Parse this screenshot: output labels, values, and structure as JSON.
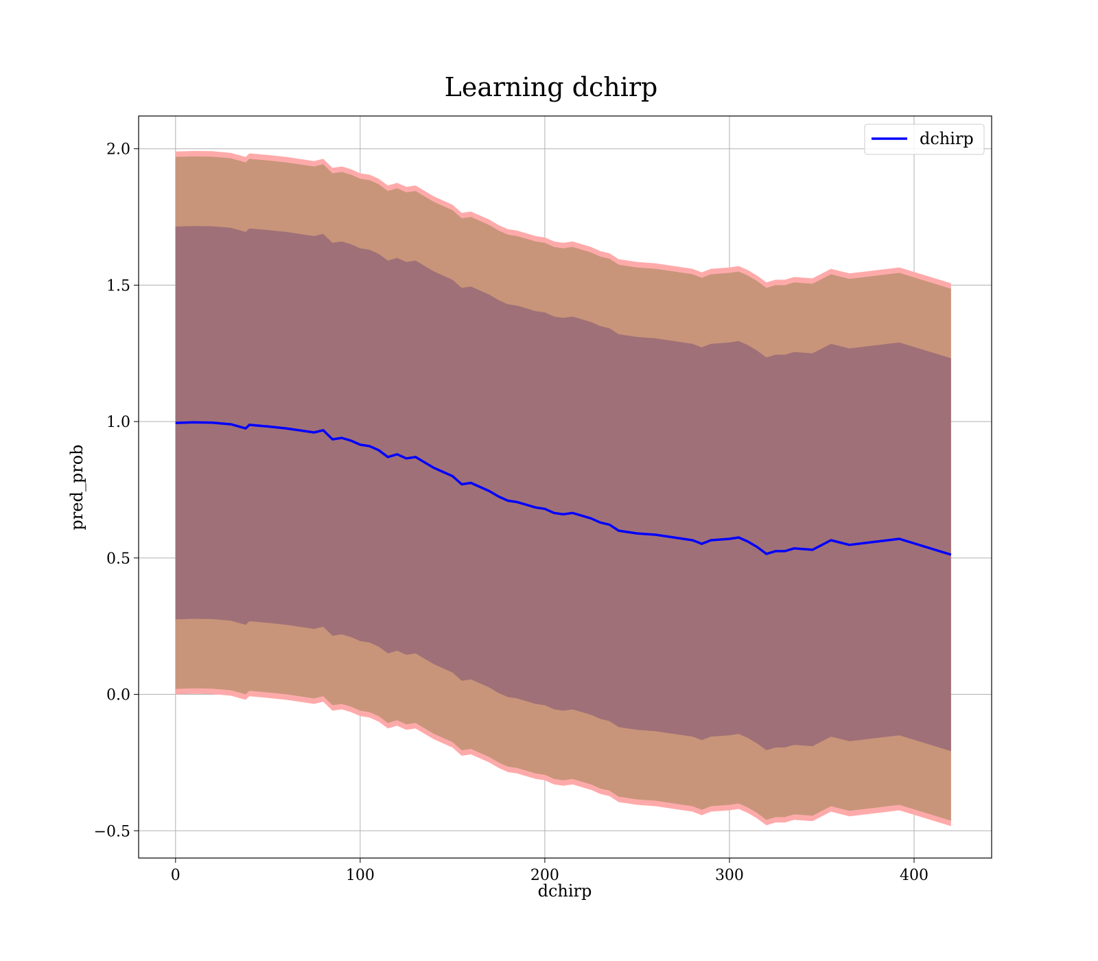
{
  "chart_data": {
    "type": "area",
    "title": "Learning dchirp",
    "xlabel": "dchirp",
    "ylabel": "pred_prob",
    "xlim": [
      -20,
      442
    ],
    "ylim": [
      -0.6,
      2.12
    ],
    "xticks": [
      0,
      100,
      200,
      300,
      400
    ],
    "yticks": [
      -0.5,
      0.0,
      0.5,
      1.0,
      1.5,
      2.0
    ],
    "xtick_labels": [
      "0",
      "100",
      "200",
      "300",
      "400"
    ],
    "ytick_labels": [
      "−0.5",
      "0.0",
      "0.5",
      "1.0",
      "1.5",
      "2.0"
    ],
    "grid": true,
    "legend": {
      "position": "top-right",
      "entries": [
        "dchirp"
      ]
    },
    "colors": {
      "line": "#0000ff",
      "outer_band": "#ffaaaa",
      "middle_band": "#c8957a",
      "inner_band": "#a07078"
    },
    "series": [
      {
        "name": "dchirp",
        "x": [
          0,
          10,
          20,
          30,
          38,
          40,
          50,
          60,
          70,
          75,
          80,
          85,
          90,
          95,
          100,
          105,
          110,
          115,
          120,
          125,
          130,
          135,
          140,
          145,
          150,
          155,
          160,
          165,
          170,
          175,
          180,
          185,
          190,
          195,
          200,
          205,
          210,
          215,
          220,
          225,
          230,
          235,
          240,
          250,
          260,
          270,
          280,
          285,
          290,
          300,
          305,
          310,
          315,
          320,
          325,
          330,
          335,
          345,
          355,
          365,
          392,
          420
        ],
        "mean": [
          0.995,
          0.997,
          0.996,
          0.99,
          0.975,
          0.988,
          0.982,
          0.975,
          0.965,
          0.96,
          0.968,
          0.935,
          0.94,
          0.93,
          0.915,
          0.91,
          0.895,
          0.87,
          0.88,
          0.865,
          0.87,
          0.85,
          0.83,
          0.815,
          0.8,
          0.77,
          0.775,
          0.76,
          0.745,
          0.725,
          0.71,
          0.705,
          0.695,
          0.685,
          0.68,
          0.665,
          0.66,
          0.665,
          0.655,
          0.645,
          0.63,
          0.622,
          0.6,
          0.59,
          0.585,
          0.575,
          0.565,
          0.552,
          0.565,
          0.57,
          0.575,
          0.56,
          0.54,
          0.515,
          0.525,
          0.525,
          0.535,
          0.53,
          0.565,
          0.548,
          0.57,
          0.512
        ],
        "band_inner": [
          0.72,
          0.72,
          0.72,
          0.72,
          0.72,
          0.72,
          0.72,
          0.72,
          0.72,
          0.72,
          0.72,
          0.72,
          0.72,
          0.72,
          0.72,
          0.72,
          0.72,
          0.72,
          0.72,
          0.72,
          0.72,
          0.72,
          0.72,
          0.72,
          0.72,
          0.72,
          0.72,
          0.72,
          0.72,
          0.72,
          0.72,
          0.72,
          0.72,
          0.72,
          0.72,
          0.72,
          0.72,
          0.72,
          0.72,
          0.72,
          0.72,
          0.72,
          0.72,
          0.72,
          0.72,
          0.72,
          0.72,
          0.72,
          0.72,
          0.72,
          0.72,
          0.72,
          0.72,
          0.72,
          0.72,
          0.72,
          0.72,
          0.72,
          0.72,
          0.72,
          0.72,
          0.72
        ],
        "band_middle": [
          0.975,
          0.975,
          0.975,
          0.975,
          0.975,
          0.975,
          0.975,
          0.975,
          0.975,
          0.975,
          0.975,
          0.975,
          0.975,
          0.975,
          0.975,
          0.975,
          0.975,
          0.975,
          0.975,
          0.975,
          0.975,
          0.975,
          0.975,
          0.975,
          0.975,
          0.975,
          0.975,
          0.975,
          0.975,
          0.975,
          0.975,
          0.975,
          0.975,
          0.975,
          0.975,
          0.975,
          0.975,
          0.975,
          0.975,
          0.975,
          0.975,
          0.975,
          0.975,
          0.975,
          0.975,
          0.975,
          0.975,
          0.975,
          0.975,
          0.975,
          0.975,
          0.975,
          0.975,
          0.975,
          0.975,
          0.975,
          0.975,
          0.975,
          0.975,
          0.975,
          0.975,
          0.975
        ],
        "band_outer": [
          0.995,
          0.995,
          0.995,
          0.995,
          0.995,
          0.995,
          0.995,
          0.995,
          0.995,
          0.995,
          0.995,
          0.995,
          0.995,
          0.995,
          0.995,
          0.995,
          0.995,
          0.995,
          0.995,
          0.995,
          0.995,
          0.995,
          0.995,
          0.995,
          0.995,
          0.995,
          0.995,
          0.995,
          0.995,
          0.995,
          0.995,
          0.995,
          0.995,
          0.995,
          0.995,
          0.995,
          0.995,
          0.995,
          0.995,
          0.995,
          0.995,
          0.995,
          0.995,
          0.995,
          0.995,
          0.995,
          0.995,
          0.995,
          0.995,
          0.995,
          0.995,
          0.995,
          0.995,
          0.995,
          0.995,
          0.995,
          0.995,
          0.995,
          0.995,
          0.995,
          0.995,
          0.995
        ]
      }
    ]
  }
}
